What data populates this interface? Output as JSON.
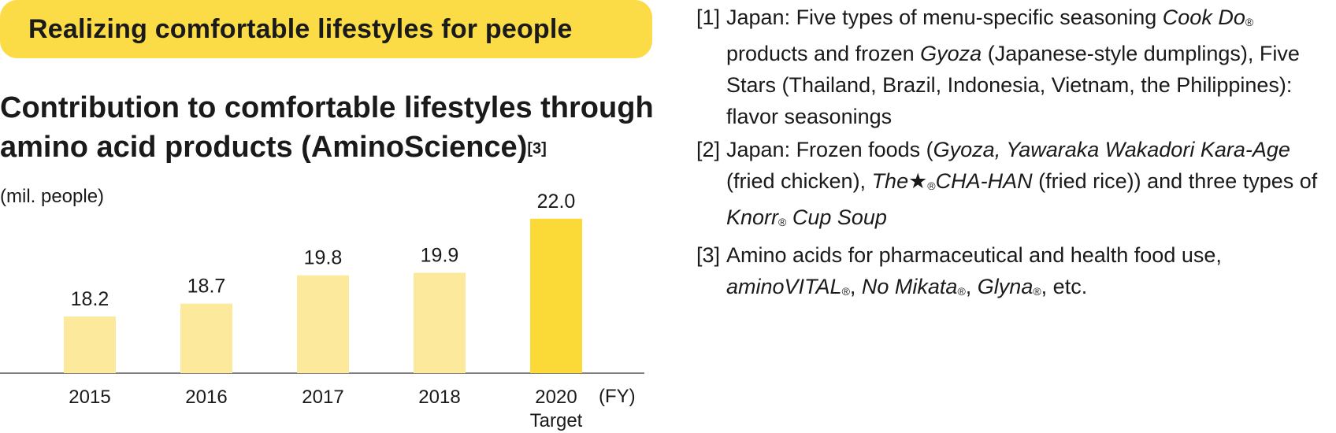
{
  "banner": {
    "text": "Realizing comfortable lifestyles for people"
  },
  "chart_data": {
    "type": "bar",
    "title": "Contribution to comfortable lifestyles through amino acid products (AminoScience)",
    "title_superscript": "[3]",
    "ylabel": "(mil. people)",
    "xlabel": "(FY)",
    "categories": [
      "2015",
      "2016",
      "2017",
      "2018",
      "2020"
    ],
    "category_sublabels": [
      "",
      "",
      "",
      "",
      "Target"
    ],
    "values": [
      18.2,
      18.7,
      19.8,
      19.9,
      22.0
    ],
    "value_labels": [
      "18.2",
      "18.7",
      "19.8",
      "19.9",
      "22.0"
    ],
    "colors": [
      "#fce99c",
      "#fce99c",
      "#fce99c",
      "#fce99c",
      "#fbd937"
    ],
    "ylim": [
      16,
      22.3
    ],
    "grid": false,
    "legend": "none"
  },
  "notes": [
    {
      "num": "[1]",
      "segments": [
        {
          "t": "Japan: Five types of menu-specific seasoning "
        },
        {
          "t": "Cook Do",
          "i": true
        },
        {
          "t": "®",
          "r": true
        },
        {
          "t": " products and frozen "
        },
        {
          "t": "Gyoza",
          "i": true
        },
        {
          "t": " (Japanese-style dumplings), Five Stars (Thailand, Brazil, Indonesia, Vietnam, the Philippines): flavor seasonings"
        }
      ]
    },
    {
      "num": "[2]",
      "segments": [
        {
          "t": "Japan: Frozen foods ("
        },
        {
          "t": "Gyoza, Yawaraka Wakadori Kara-Age",
          "i": true
        },
        {
          "t": " (fried chicken), "
        },
        {
          "t": "The★",
          "i": true
        },
        {
          "t": "®",
          "r": true
        },
        {
          "t": "CHA-HAN",
          "i": true
        },
        {
          "t": " (fried rice)) and three types of "
        },
        {
          "t": "Knorr",
          "i": true
        },
        {
          "t": "®",
          "r": true
        },
        {
          "t": " Cup Soup",
          "i": true
        }
      ]
    },
    {
      "num": "[3]",
      "segments": [
        {
          "t": "Amino acids for pharmaceutical and health food use, "
        },
        {
          "t": "aminoVITAL",
          "i": true
        },
        {
          "t": "®",
          "r": true
        },
        {
          "t": ", "
        },
        {
          "t": "No Mikata",
          "i": true
        },
        {
          "t": "®",
          "r": true
        },
        {
          "t": ", "
        },
        {
          "t": "Glyna",
          "i": true
        },
        {
          "t": "®",
          "r": true
        },
        {
          "t": ", etc."
        }
      ]
    }
  ]
}
